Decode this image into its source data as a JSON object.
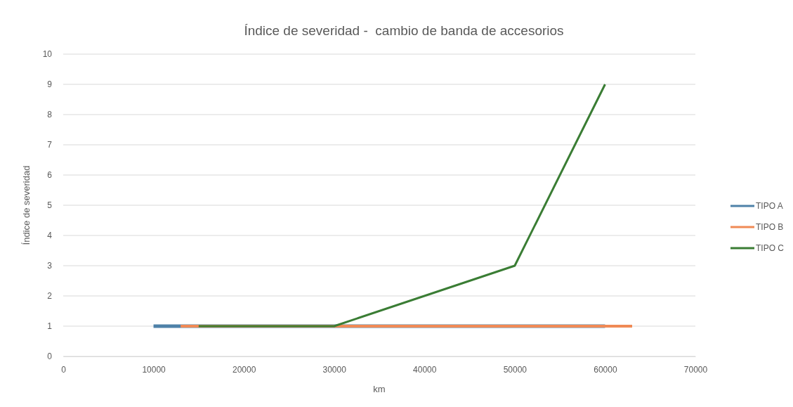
{
  "chart_data": {
    "type": "line",
    "title": "Índice de severidad -  cambio de banda de accesorios",
    "xlabel": "km",
    "ylabel": "Índice de severidad",
    "xlim": [
      0,
      70000
    ],
    "xticks": [
      0,
      10000,
      20000,
      30000,
      40000,
      50000,
      60000,
      70000
    ],
    "ylim": [
      0,
      10
    ],
    "yticks": [
      0,
      1,
      2,
      3,
      4,
      5,
      6,
      7,
      8,
      9,
      10
    ],
    "grid": "y",
    "legend": "right",
    "marker": "none",
    "series": [
      {
        "name": "TIPO A",
        "color": "#4e81a8",
        "x": [
          10000,
          60000
        ],
        "values": [
          1,
          1
        ]
      },
      {
        "name": "TIPO B",
        "color": "#f08a55",
        "x": [
          13000,
          63000
        ],
        "values": [
          1,
          1
        ]
      },
      {
        "name": "TIPO C",
        "color": "#3a7d34",
        "x": [
          15000,
          30000,
          50000,
          60000
        ],
        "values": [
          1,
          1,
          3,
          9
        ]
      }
    ]
  }
}
